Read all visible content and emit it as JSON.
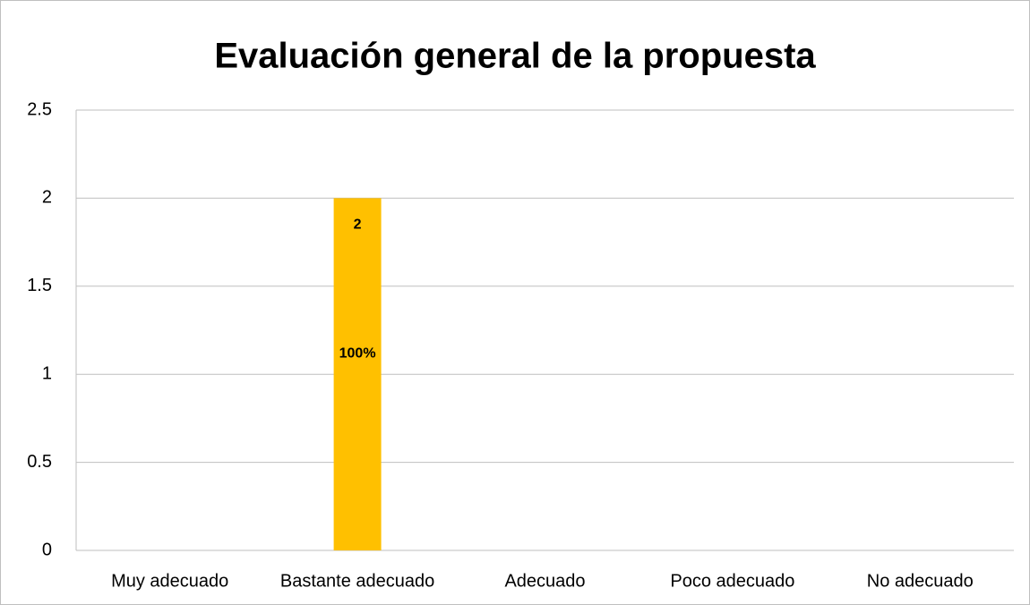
{
  "chart_data": {
    "type": "bar",
    "title": "Evaluación general de la propuesta",
    "categories": [
      "Muy adecuado",
      "Bastante adecuado",
      "Adecuado",
      "Poco adecuado",
      "No adecuado"
    ],
    "values": [
      null,
      2,
      null,
      null,
      null
    ],
    "percentages": [
      null,
      100,
      null,
      null,
      null
    ],
    "percentage_labels": [
      null,
      "100%",
      null,
      null,
      null
    ],
    "color": "#ffc000",
    "ylim": [
      0,
      2.5
    ],
    "yticks": [
      0,
      0.5,
      1,
      1.5,
      2,
      2.5
    ],
    "grid": true
  }
}
